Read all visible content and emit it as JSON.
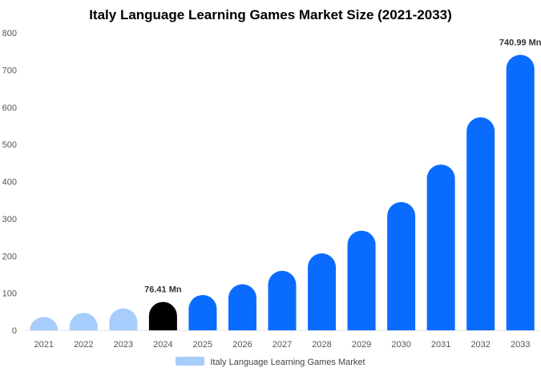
{
  "chart_data": {
    "type": "bar",
    "title": "Italy Language Learning Games Market Size (2021-2033)",
    "xlabel": "",
    "ylabel": "",
    "categories": [
      "2021",
      "2022",
      "2023",
      "2024",
      "2025",
      "2026",
      "2027",
      "2028",
      "2029",
      "2030",
      "2031",
      "2032",
      "2033"
    ],
    "series": [
      {
        "name": "Italy Language Learning Games Market",
        "values": [
          36,
          47,
          59,
          76.41,
          95,
          124,
          160,
          207,
          268,
          345,
          446,
          573,
          740.99
        ]
      }
    ],
    "ylim": [
      0,
      800
    ],
    "yticks": [
      0,
      100,
      200,
      300,
      400,
      500,
      600,
      700,
      800
    ],
    "grid": false,
    "legend_position": "bottom",
    "annotations": [
      {
        "category": "2024",
        "text": "76.41 Mn"
      },
      {
        "category": "2033",
        "text": "740.99 Mn"
      }
    ],
    "colors": {
      "historical": "#a6cdfb",
      "base_year": "#000000",
      "forecast": "#0a6cff",
      "legend_swatch": "#a6cdfb",
      "axis_text": "#555555"
    },
    "bar_color_groups": [
      "historical",
      "historical",
      "historical",
      "base_year",
      "forecast",
      "forecast",
      "forecast",
      "forecast",
      "forecast",
      "forecast",
      "forecast",
      "forecast",
      "forecast"
    ]
  }
}
